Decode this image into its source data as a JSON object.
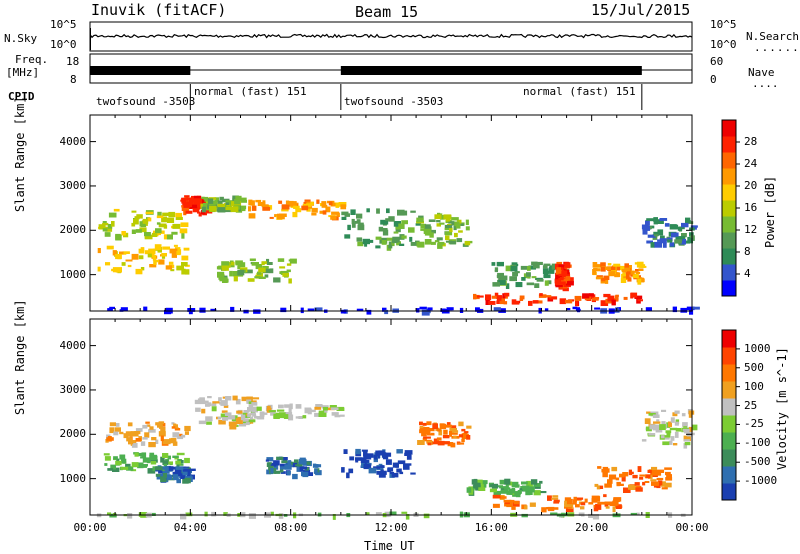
{
  "header": {
    "station": "Inuvik (fitACF)",
    "beam": "Beam 15",
    "date": "15/Jul/2015"
  },
  "top_panels": {
    "nsky_label": "N.Sky",
    "nsearch_label": "N.Search",
    "noise_ticks_left": [
      "10^5",
      "10^0"
    ],
    "noise_ticks_right": [
      "10^5",
      "10^0"
    ],
    "freq_label_1": "Freq.",
    "freq_label_2": "[MHz]",
    "freq_ticks": [
      "18",
      "8"
    ],
    "nave_label": "Nave",
    "nave_ticks": [
      "60",
      "0"
    ],
    "cpid_label": "CPID"
  },
  "cpid_segments": [
    {
      "label": "twofsound -3503",
      "start_h": 0.0,
      "end_h": 4.0
    },
    {
      "label": "normal (fast) 151",
      "start_h": 4.0,
      "end_h": 10.0
    },
    {
      "label": "twofsound -3503",
      "start_h": 10.0,
      "end_h": 22.0
    },
    {
      "label": "normal (fast) 151",
      "start_h": 22.0,
      "end_h": 24.0
    }
  ],
  "chart_data": [
    {
      "type": "heatmap",
      "name": "power",
      "ylabel": "Slant Range [km]",
      "xlabel": "",
      "x_range_h": [
        0,
        24
      ],
      "ylim": [
        180,
        4600
      ],
      "yticks": [
        1000,
        2000,
        3000,
        4000
      ],
      "colorbar": {
        "label": "Power [dB]",
        "ticks": [
          "4",
          "8",
          "12",
          "16",
          "20",
          "24",
          "28"
        ],
        "colors": [
          "#0000ff",
          "#3355cc",
          "#2e8b57",
          "#559955",
          "#77bb33",
          "#bbcc00",
          "#ffcc00",
          "#ff9900",
          "#ff6600",
          "#ff2200",
          "#ee0000"
        ]
      }
    },
    {
      "type": "heatmap",
      "name": "velocity",
      "ylabel": "Slant Range [km]",
      "xlabel": "Time UT",
      "x_range_h": [
        0,
        24
      ],
      "xticks": [
        "00:00",
        "04:00",
        "08:00",
        "12:00",
        "16:00",
        "20:00",
        "00:00"
      ],
      "ylim": [
        180,
        4600
      ],
      "yticks": [
        1000,
        2000,
        3000,
        4000
      ],
      "colorbar": {
        "label": "Velocity [m s^-1]",
        "ticks": [
          "1000",
          "500",
          "100",
          "25",
          "-25",
          "-100",
          "-500",
          "-1000"
        ],
        "colors": [
          "#1a3fb0",
          "#2f6fb0",
          "#3c8c5a",
          "#4caf50",
          "#7ccc33",
          "#c0c0c0",
          "#f0a020",
          "#ff7700",
          "#ff4400",
          "#ee0000"
        ]
      }
    }
  ]
}
